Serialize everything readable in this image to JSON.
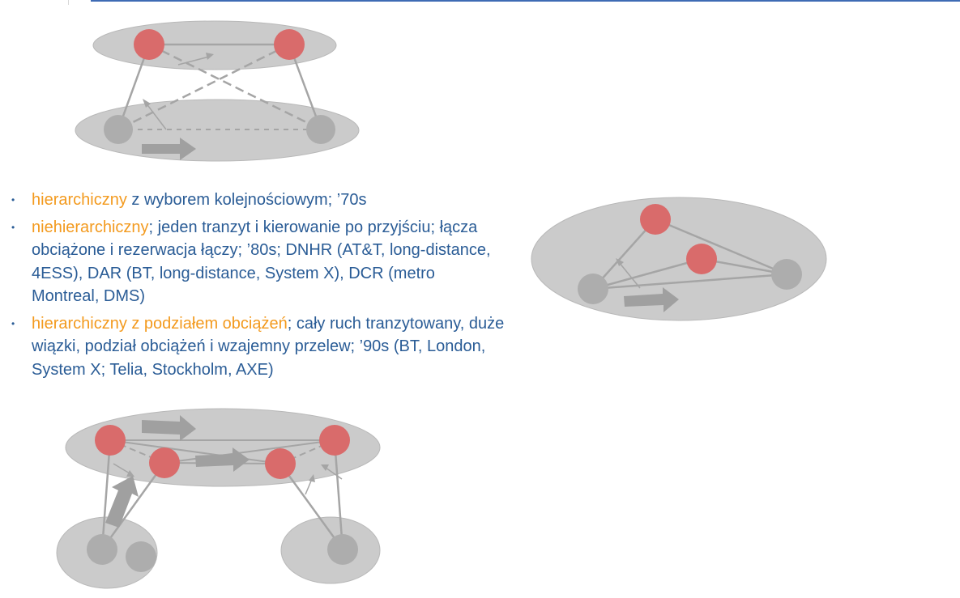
{
  "colors": {
    "accent_orange": "#f39a1e",
    "text_blue": "#2a5c96",
    "rule_blue": "#3e6bb4",
    "layer_gray": "#cbcbcb",
    "node_gray": "#adadad",
    "node_red": "#d96b6b",
    "link_gray": "#a5a5a5"
  },
  "icons": {
    "bullet": "•"
  },
  "bullets": [
    {
      "highlight": "hierarchiczny",
      "text": " z  wyborem kolejnościowym;  ’70s"
    },
    {
      "highlight": "niehierarchiczny",
      "text": "; jeden tranzyt i kierowanie po przyjściu; łącza obciążone i rezerwacja łączy; ’80s; DNHR (AT&T, long-distance, 4ESS), DAR (BT, long-distance, System X), DCR (metro Montreal, DMS)"
    },
    {
      "highlight": "hierarchiczny z podziałem obciążeń",
      "text": "; cały ruch tranzytowany, duże wiązki, podział obciążeń i wzajemny przelew; ’90s (BT, London, System X; Telia, Stockholm, AXE)"
    }
  ],
  "diagrams": [
    {
      "name": "hierarchical-network",
      "layers": 2,
      "transit_nodes": 2,
      "local_nodes": 2
    },
    {
      "name": "nonhierarchical-network",
      "layers": 1,
      "transit_nodes": 2,
      "local_nodes": 2
    },
    {
      "name": "load-sharing-network",
      "layers": 3,
      "transit_nodes": 4,
      "local_nodes": 3
    }
  ]
}
